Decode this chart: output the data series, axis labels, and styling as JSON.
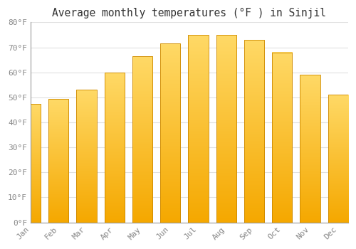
{
  "title": "Average monthly temperatures (°F ) in Sinjil",
  "months": [
    "Jan",
    "Feb",
    "Mar",
    "Apr",
    "May",
    "Jun",
    "Jul",
    "Aug",
    "Sep",
    "Oct",
    "Nov",
    "Dec"
  ],
  "values": [
    47.5,
    49.5,
    53.0,
    60.0,
    66.5,
    71.5,
    75.0,
    75.0,
    73.0,
    68.0,
    59.0,
    51.0
  ],
  "bar_color_top": "#FFD966",
  "bar_color_bottom": "#F5A800",
  "bar_edge_color": "#CC8800",
  "background_color": "#FFFFFF",
  "grid_color": "#E0E0E0",
  "text_color": "#888888",
  "title_color": "#333333",
  "ylim": [
    0,
    80
  ],
  "yticks": [
    0,
    10,
    20,
    30,
    40,
    50,
    60,
    70,
    80
  ],
  "ytick_labels": [
    "0°F",
    "10°F",
    "20°F",
    "30°F",
    "40°F",
    "50°F",
    "60°F",
    "70°F",
    "80°F"
  ],
  "title_fontsize": 10.5,
  "tick_fontsize": 8,
  "bar_width": 0.72
}
